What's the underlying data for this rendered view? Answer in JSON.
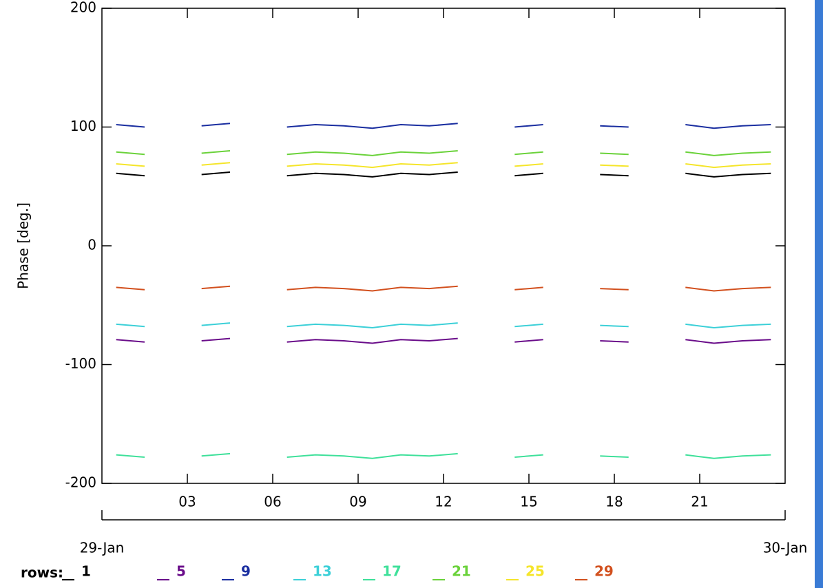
{
  "chart_data": {
    "type": "line",
    "y_label": "Phase [deg.]",
    "legend_title": "rows:",
    "x": [
      0.5,
      1.5,
      2.5,
      3.5,
      4.5,
      5.5,
      6.5,
      7.5,
      8.5,
      9.5,
      10.5,
      11.5,
      12.5,
      13.5,
      14.5,
      15.5,
      16.5,
      17.5,
      18.5,
      19.5,
      20.5,
      21.5,
      22.5,
      23.5
    ],
    "xlim": [
      0,
      24
    ],
    "xticks": [
      {
        "value": 3,
        "label": "03"
      },
      {
        "value": 6,
        "label": "06"
      },
      {
        "value": 9,
        "label": "09"
      },
      12,
      15,
      18,
      21
    ],
    "x2ticks": [
      {
        "value": 0,
        "label": "29-Jan"
      },
      {
        "value": 24,
        "label": "30-Jan"
      }
    ],
    "ylim": [
      -200,
      200
    ],
    "yticks": [
      -200,
      -100,
      0,
      100,
      200
    ],
    "series": [
      {
        "name": "1",
        "color": "#000000",
        "values": [
          61,
          59,
          null,
          60,
          62,
          null,
          59,
          61,
          60,
          58,
          61,
          60,
          62,
          null,
          59,
          61,
          null,
          60,
          59,
          null,
          61,
          58,
          60,
          61
        ]
      },
      {
        "name": "5",
        "color": "#6a0d8a",
        "values": [
          -79,
          -81,
          null,
          -80,
          -78,
          null,
          -81,
          -79,
          -80,
          -82,
          -79,
          -80,
          -78,
          null,
          -81,
          -79,
          null,
          -80,
          -81,
          null,
          -79,
          -82,
          -80,
          -79
        ]
      },
      {
        "name": "9",
        "color": "#1a2ea0",
        "values": [
          102,
          100,
          null,
          101,
          103,
          null,
          100,
          102,
          101,
          99,
          102,
          101,
          103,
          null,
          100,
          102,
          null,
          101,
          100,
          null,
          102,
          99,
          101,
          102
        ]
      },
      {
        "name": "13",
        "color": "#3cd0d8",
        "values": [
          -66,
          -68,
          null,
          -67,
          -65,
          null,
          -68,
          -66,
          -67,
          -69,
          -66,
          -67,
          -65,
          null,
          -68,
          -66,
          null,
          -67,
          -68,
          null,
          -66,
          -69,
          -67,
          -66
        ]
      },
      {
        "name": "17",
        "color": "#3ee09a",
        "values": [
          -176,
          -178,
          null,
          -177,
          -175,
          null,
          -178,
          -176,
          -177,
          -179,
          -176,
          -177,
          -175,
          null,
          -178,
          -176,
          null,
          -177,
          -178,
          null,
          -176,
          -179,
          -177,
          -176
        ]
      },
      {
        "name": "21",
        "color": "#6ad23a",
        "values": [
          79,
          77,
          null,
          78,
          80,
          null,
          77,
          79,
          78,
          76,
          79,
          78,
          80,
          null,
          77,
          79,
          null,
          78,
          77,
          null,
          79,
          76,
          78,
          79
        ]
      },
      {
        "name": "25",
        "color": "#f5e52a",
        "values": [
          69,
          67,
          null,
          68,
          70,
          null,
          67,
          69,
          68,
          66,
          69,
          68,
          70,
          null,
          67,
          69,
          null,
          68,
          67,
          null,
          69,
          66,
          68,
          69
        ]
      },
      {
        "name": "29",
        "color": "#d2501e",
        "values": [
          -35,
          -37,
          null,
          -36,
          -34,
          null,
          -37,
          -35,
          -36,
          -38,
          -35,
          -36,
          -34,
          null,
          -37,
          -35,
          null,
          -36,
          -37,
          null,
          -35,
          -38,
          -36,
          -35
        ]
      }
    ]
  }
}
